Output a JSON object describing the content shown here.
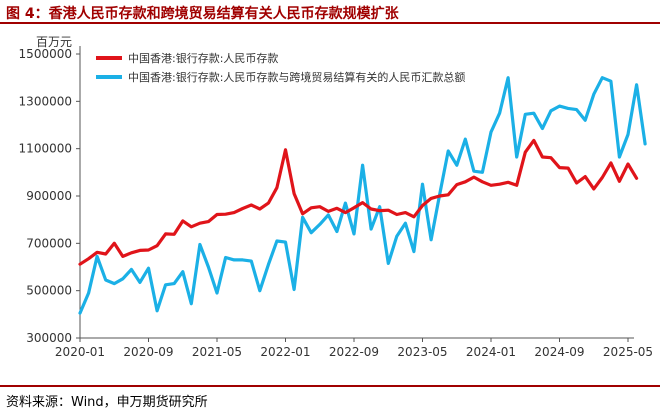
{
  "figure_title": "图 4：香港人民币存款和跨境贸易结算有关人民币存款规模扩张",
  "source": "资料来源：Wind，申万期货研究所",
  "chart_data": {
    "type": "line",
    "title": "",
    "ylabel": "百万元",
    "ylim": [
      300000,
      1500000
    ],
    "y_ticks": [
      "300000",
      "500000",
      "700000",
      "900000",
      "1100000",
      "1300000",
      "1500000"
    ],
    "x_ticks": [
      "2020-01",
      "2020-09",
      "2021-05",
      "2022-01",
      "2022-09",
      "2023-05",
      "2024-01",
      "2024-09",
      "2025-05"
    ],
    "x_start": "2020-01",
    "legend_position": "top-left",
    "series": [
      {
        "name": "中国香港:银行存款:人民币存款",
        "color": "#e0141a",
        "values": [
          612000,
          635000,
          662000,
          655000,
          700000,
          645000,
          660000,
          670000,
          672000,
          690000,
          740000,
          738000,
          795000,
          770000,
          785000,
          792000,
          822000,
          823000,
          830000,
          847000,
          862000,
          845000,
          870000,
          935000,
          1095000,
          910000,
          825000,
          850000,
          855000,
          835000,
          848000,
          830000,
          850000,
          872000,
          845000,
          838000,
          840000,
          822000,
          830000,
          812000,
          860000,
          890000,
          900000,
          905000,
          948000,
          960000,
          980000,
          960000,
          945000,
          950000,
          958000,
          945000,
          1085000,
          1135000,
          1065000,
          1062000,
          1020000,
          1018000,
          955000,
          982000,
          930000,
          978000,
          1040000,
          962000,
          1035000,
          975000
        ]
      },
      {
        "name": "中国香港:银行存款:人民币存款与跨境贸易结算有关的人民币汇款总额",
        "color": "#1bb0e6",
        "values": [
          405000,
          490000,
          645000,
          545000,
          530000,
          550000,
          590000,
          535000,
          595000,
          415000,
          525000,
          530000,
          580000,
          445000,
          695000,
          600000,
          490000,
          640000,
          630000,
          630000,
          625000,
          500000,
          610000,
          710000,
          705000,
          505000,
          810000,
          745000,
          780000,
          820000,
          750000,
          870000,
          740000,
          1030000,
          760000,
          855000,
          615000,
          730000,
          785000,
          665000,
          950000,
          715000,
          905000,
          1090000,
          1030000,
          1140000,
          1005000,
          1000000,
          1170000,
          1250000,
          1400000,
          1065000,
          1245000,
          1250000,
          1185000,
          1260000,
          1280000,
          1270000,
          1265000,
          1220000,
          1330000,
          1400000,
          1385000,
          1065000,
          1160000,
          1370000,
          1120000
        ]
      }
    ]
  }
}
